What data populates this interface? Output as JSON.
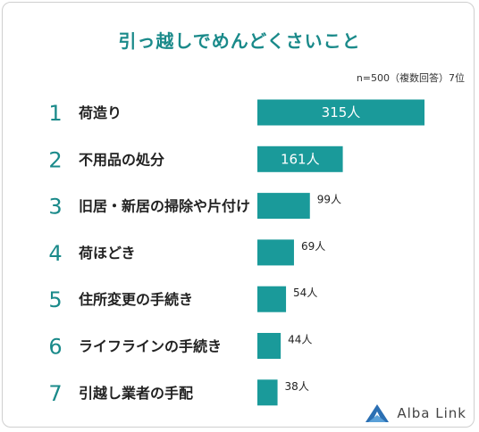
{
  "title": "引っ越しでめんどくさいこと",
  "note": "n=500（複数回答）7位",
  "brand": "Alba Link",
  "colors": {
    "accent": "#1a9a9a",
    "title": "#1a8a8a"
  },
  "chart_data": {
    "type": "bar",
    "orientation": "horizontal",
    "ranks": [
      "1",
      "2",
      "3",
      "4",
      "5",
      "6",
      "7"
    ],
    "categories": [
      "荷造り",
      "不用品の処分",
      "旧居・新居の掃除や片付け",
      "荷ほどき",
      "住所変更の手続き",
      "ライフラインの手続き",
      "引越し業者の手配"
    ],
    "values": [
      315,
      161,
      99,
      69,
      54,
      44,
      38
    ],
    "value_labels": [
      "315人",
      "161人",
      "99人",
      "69人",
      "54人",
      "44人",
      "38人"
    ],
    "unit": "人",
    "grid": false
  }
}
